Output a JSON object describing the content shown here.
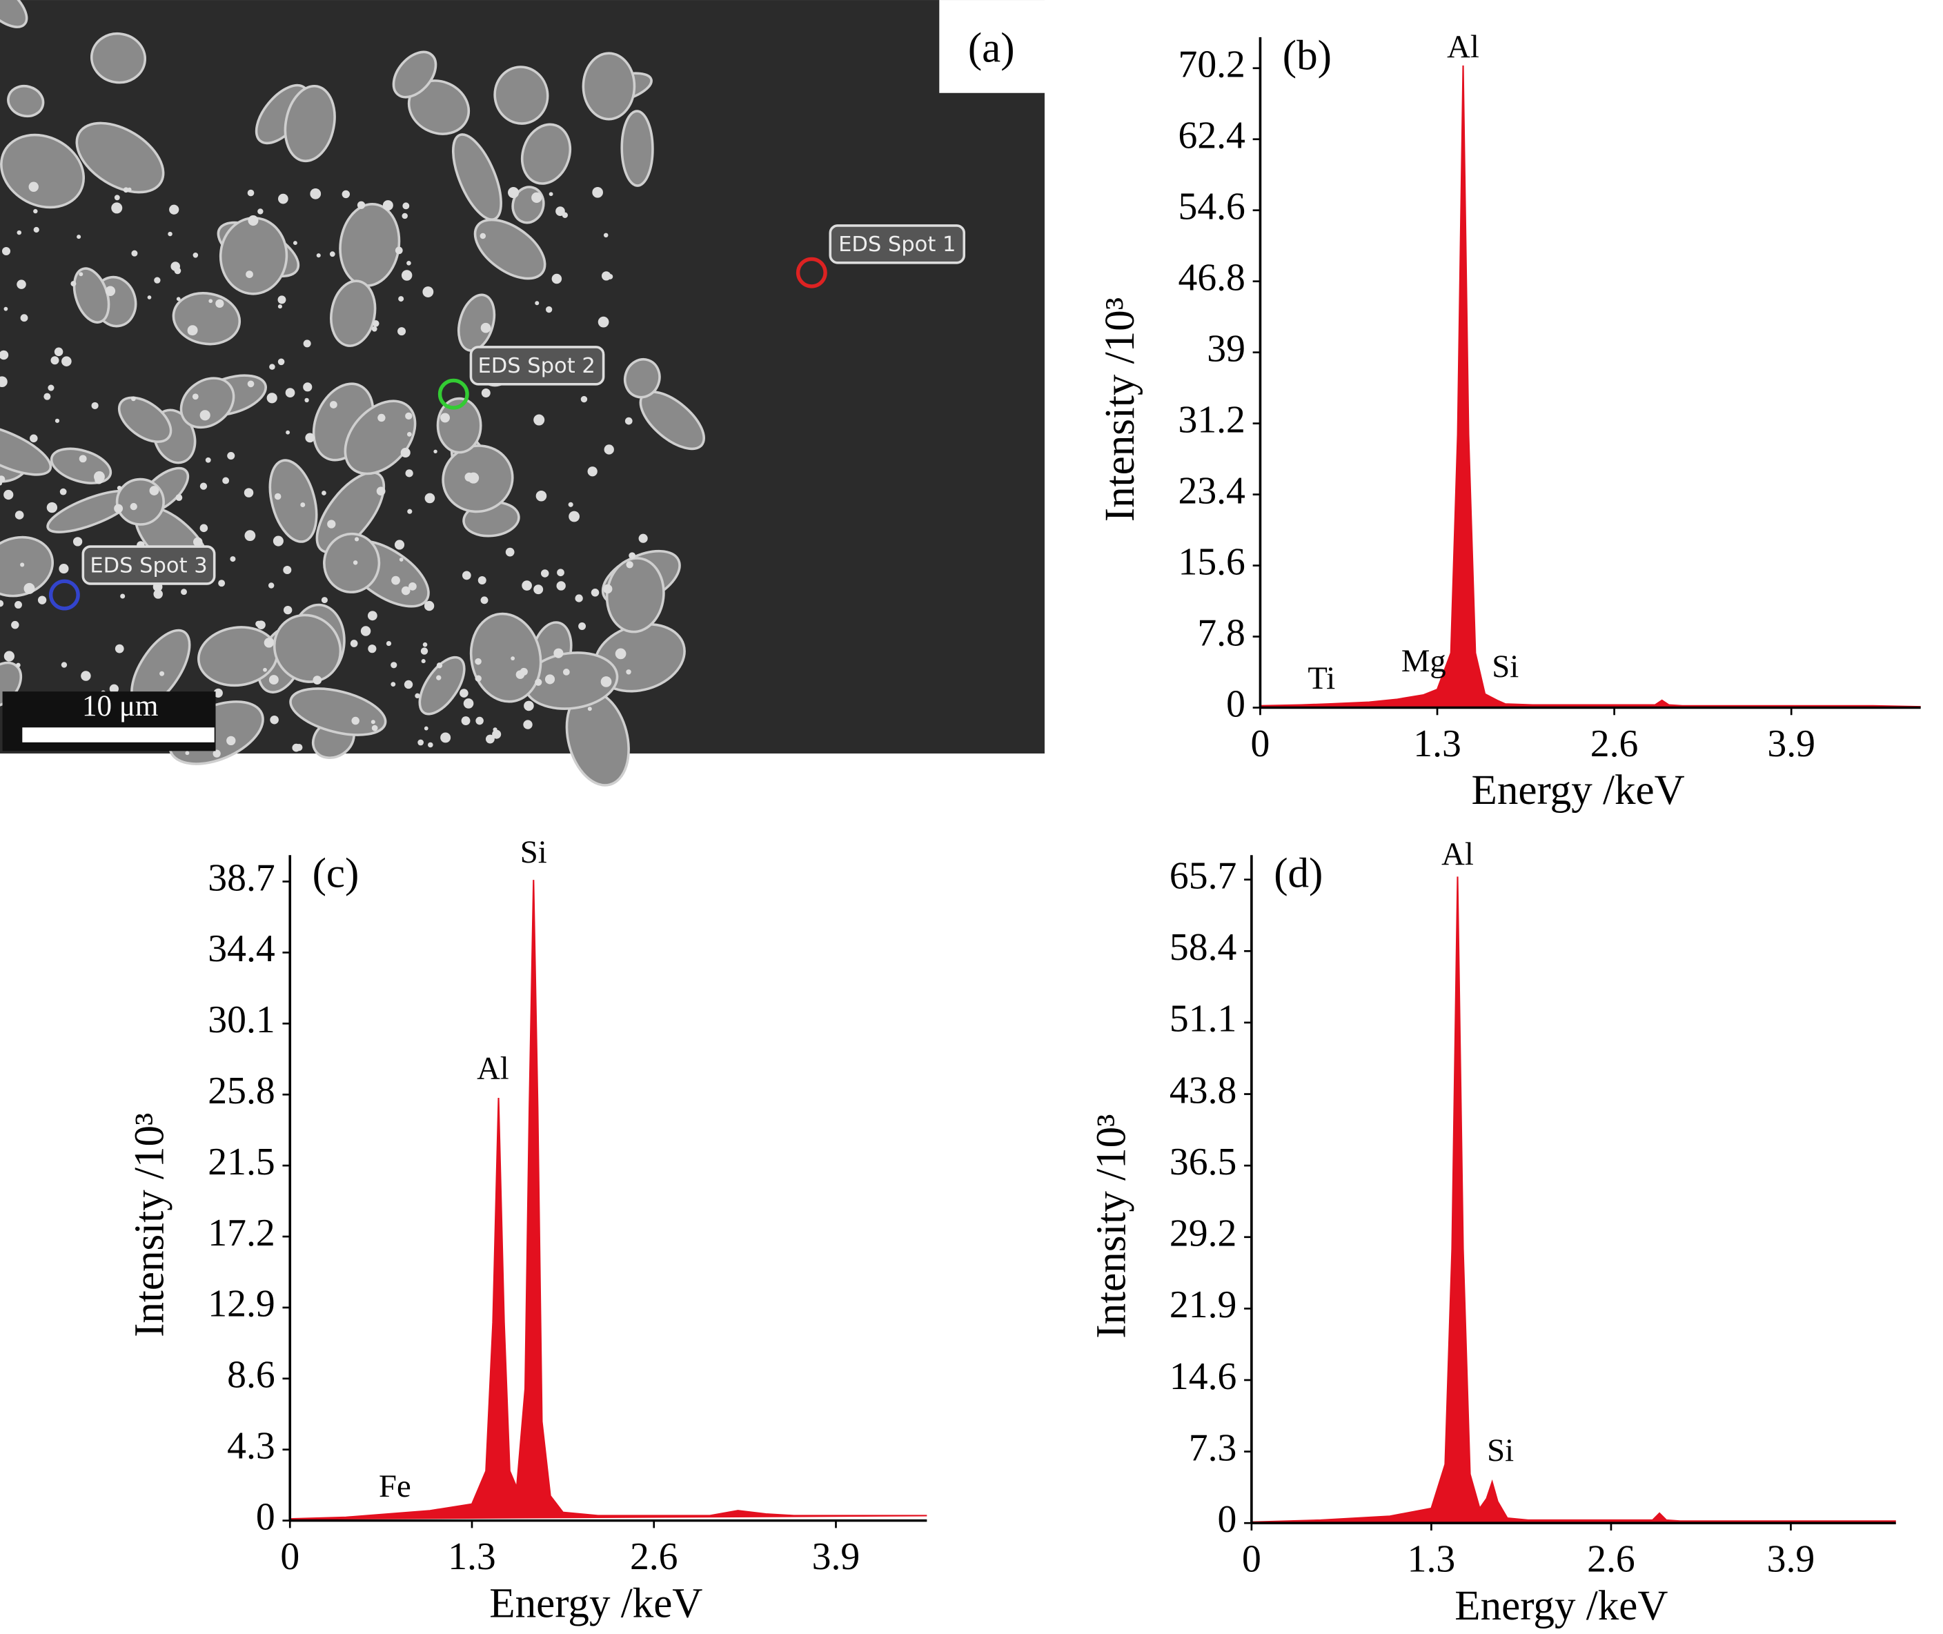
{
  "image": {
    "label": "(a)",
    "spots": [
      "EDS Spot 1",
      "EDS Spot 2",
      "EDS Spot 3"
    ],
    "scale_bar": "10 μm"
  },
  "chart_data": [
    {
      "type": "area",
      "label": "(b)",
      "x_label": "Energy /keV",
      "y_label": "Intensity /10³",
      "color": "#e3101f",
      "grid": false,
      "x": [
        0,
        0.3,
        0.5,
        0.8,
        1.0,
        1.2,
        1.3,
        1.4,
        1.45,
        1.49,
        1.53,
        1.58,
        1.65,
        1.74,
        1.8,
        2.0,
        2.5,
        2.9,
        2.95,
        3.0,
        3.1,
        4.0,
        4.5,
        4.85
      ],
      "values": [
        0.2,
        0.3,
        0.4,
        0.6,
        0.9,
        1.4,
        2.0,
        6,
        30,
        70.5,
        30,
        6,
        1.5,
        0.8,
        0.4,
        0.3,
        0.3,
        0.3,
        0.8,
        0.3,
        0.2,
        0.2,
        0.2,
        0.1
      ],
      "xlim": [
        0,
        4.85
      ],
      "ylim": [
        0,
        73.6
      ],
      "xticks": [
        0,
        1.3,
        2.6,
        3.9
      ],
      "yticks": [
        0,
        7.8,
        15.6,
        23.4,
        31.2,
        39.0,
        46.8,
        54.6,
        62.4,
        70.2
      ],
      "annotations": [
        {
          "text": "Ti",
          "x": 0.45,
          "y": 2.9
        },
        {
          "text": "Mg",
          "x": 1.2,
          "y": 4.8
        },
        {
          "text": "Al",
          "x": 1.49,
          "y": 72.2
        },
        {
          "text": "Si",
          "x": 1.8,
          "y": 4.2
        }
      ]
    },
    {
      "type": "area",
      "label": "(c)",
      "x_label": "Energy /keV",
      "y_label": "Intensity /10³",
      "color": "#e3101f",
      "grid": false,
      "x": [
        0,
        0.4,
        0.7,
        1.0,
        1.3,
        1.4,
        1.45,
        1.49,
        1.53,
        1.57,
        1.62,
        1.68,
        1.71,
        1.74,
        1.77,
        1.8,
        1.86,
        1.95,
        2.2,
        3.0,
        3.2,
        3.4,
        3.6,
        4.55
      ],
      "values": [
        0.1,
        0.2,
        0.4,
        0.6,
        1.0,
        3,
        12,
        25.6,
        12,
        3,
        2,
        8,
        25,
        38.8,
        25,
        6,
        1.5,
        0.5,
        0.3,
        0.3,
        0.6,
        0.4,
        0.3,
        0.3
      ],
      "xlim": [
        0,
        4.55
      ],
      "ylim": [
        0,
        40.3
      ],
      "xticks": [
        0,
        1.3,
        2.6,
        3.9
      ],
      "yticks": [
        0,
        4.3,
        8.6,
        12.9,
        17.2,
        21.5,
        25.8,
        30.1,
        34.4,
        38.7
      ],
      "annotations": [
        {
          "text": "Fe",
          "x": 0.75,
          "y": 1.9
        },
        {
          "text": "Al",
          "x": 1.45,
          "y": 27.2
        },
        {
          "text": "Si",
          "x": 1.74,
          "y": 40.3
        }
      ]
    },
    {
      "type": "area",
      "label": "(d)",
      "x_label": "Energy /keV",
      "y_label": "Intensity /10³",
      "color": "#e3101f",
      "grid": false,
      "x": [
        0,
        0.5,
        1.0,
        1.3,
        1.4,
        1.45,
        1.49,
        1.53,
        1.58,
        1.65,
        1.7,
        1.74,
        1.78,
        1.85,
        2.0,
        2.9,
        2.95,
        3.0,
        3.1,
        4.66
      ],
      "values": [
        0.1,
        0.3,
        0.7,
        1.5,
        6,
        28,
        66,
        28,
        5,
        1.5,
        2.5,
        4.2,
        2.2,
        0.5,
        0.3,
        0.3,
        1,
        0.3,
        0.2,
        0.2
      ],
      "xlim": [
        0,
        4.66
      ],
      "ylim": [
        0,
        68.2
      ],
      "xticks": [
        0,
        1.3,
        2.6,
        3.9
      ],
      "yticks": [
        0,
        7.3,
        14.6,
        21.9,
        29.2,
        36.5,
        43.8,
        51.1,
        58.4,
        65.7
      ],
      "annotations": [
        {
          "text": "Al",
          "x": 1.49,
          "y": 68.0
        },
        {
          "text": "Si",
          "x": 1.8,
          "y": 7.1
        }
      ]
    }
  ]
}
